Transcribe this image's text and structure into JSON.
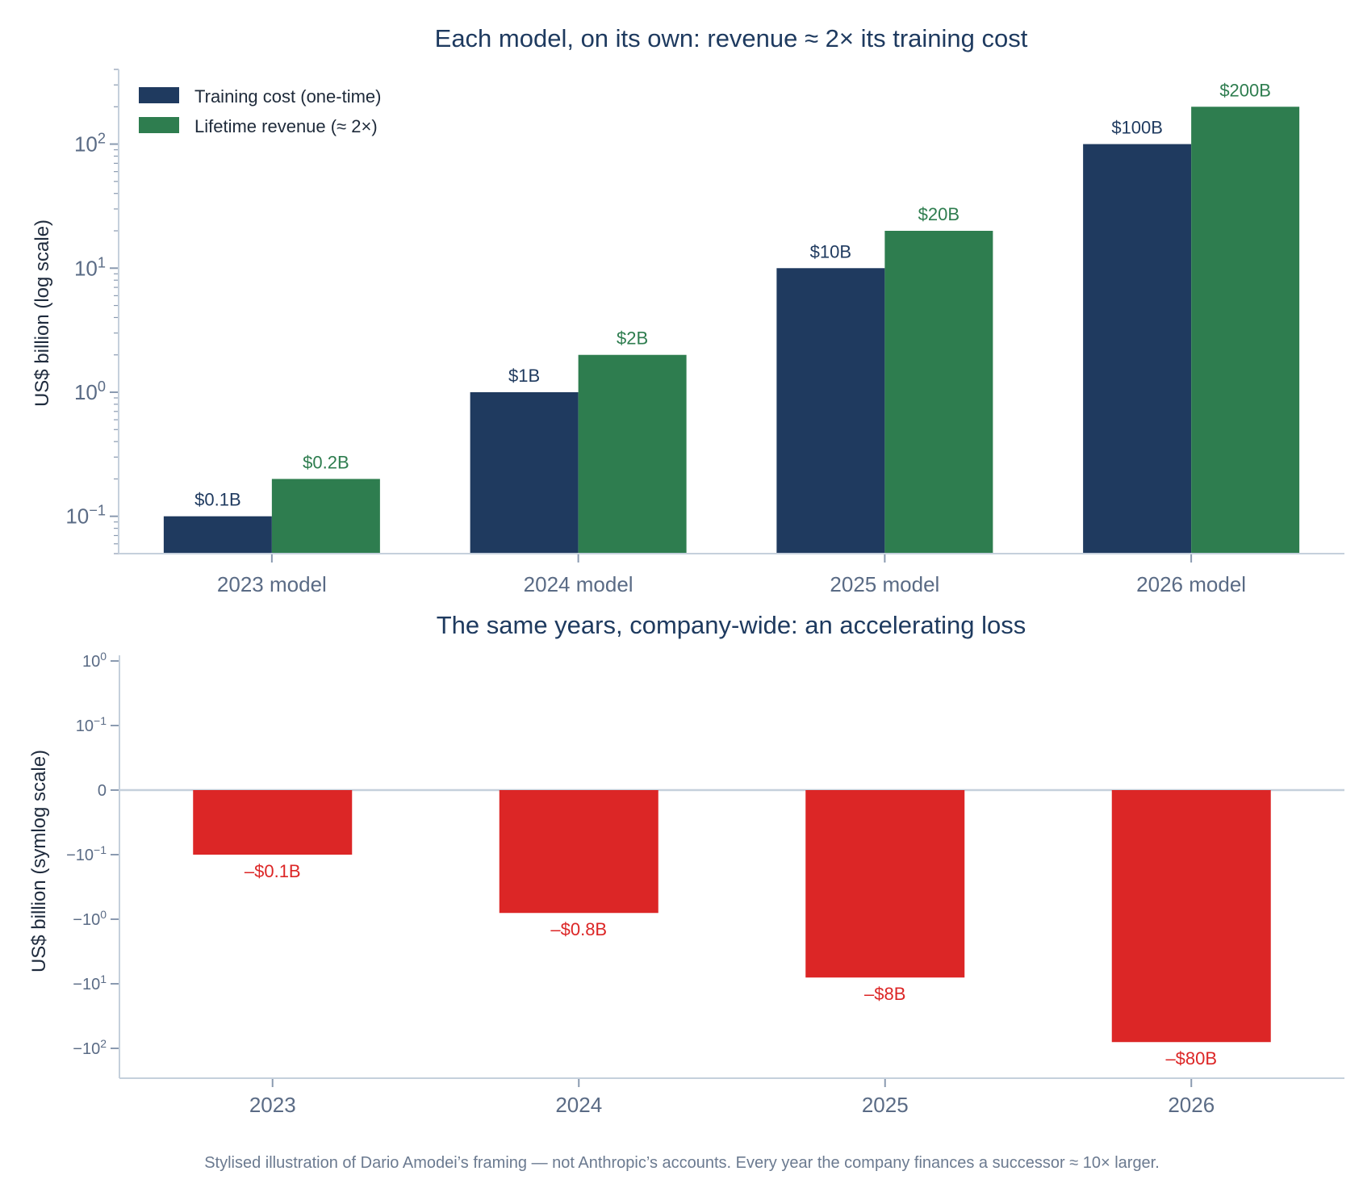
{
  "colors": {
    "cost": "#1f3a5f",
    "revenue": "#2e7d4f",
    "loss": "#dc2626",
    "title": "#1e3a5f"
  },
  "chart_data": [
    {
      "type": "bar",
      "title": "Each model, on its own:  revenue ≈ 2× its training cost",
      "xlabel": "",
      "ylabel": "US$ billion  (log scale)",
      "yscale": "log",
      "ylim": [
        0.05,
        400
      ],
      "yticks": [
        0.1,
        1,
        10,
        100
      ],
      "ytick_labels": [
        {
          "base": "10",
          "exp": "−1"
        },
        {
          "base": "10",
          "exp": "0"
        },
        {
          "base": "10",
          "exp": "1"
        },
        {
          "base": "10",
          "exp": "2"
        }
      ],
      "categories": [
        "2023 model",
        "2024 model",
        "2025 model",
        "2026 model"
      ],
      "legend_position": "top-left",
      "grid": false,
      "series": [
        {
          "name": "Training cost (one-time)",
          "color": "#1f3a5f",
          "values": [
            0.1,
            1,
            10,
            100
          ],
          "labels": [
            "$0.1B",
            "$1B",
            "$10B",
            "$100B"
          ]
        },
        {
          "name": "Lifetime revenue (≈ 2×)",
          "color": "#2e7d4f",
          "values": [
            0.2,
            2,
            20,
            200
          ],
          "labels": [
            "$0.2B",
            "$2B",
            "$20B",
            "$200B"
          ]
        }
      ]
    },
    {
      "type": "bar",
      "title": "The same years, company-wide:  an accelerating loss",
      "xlabel": "",
      "ylabel": "US$ billion  (symlog scale)",
      "yscale": "symlog",
      "ylim": [
        -200,
        1
      ],
      "yticks": [
        1,
        0.1,
        0,
        -0.1,
        -1,
        -10,
        -100
      ],
      "ytick_labels": [
        {
          "base": "10",
          "exp": "0"
        },
        {
          "base": "10",
          "exp": "−1"
        },
        {
          "base": "0",
          "exp": ""
        },
        {
          "base": "−10",
          "exp": "−1"
        },
        {
          "base": "−10",
          "exp": "0"
        },
        {
          "base": "−10",
          "exp": "1"
        },
        {
          "base": "−10",
          "exp": "2"
        }
      ],
      "categories": [
        "2023",
        "2024",
        "2025",
        "2026"
      ],
      "grid": false,
      "series": [
        {
          "color": "#dc2626",
          "values": [
            -0.1,
            -0.8,
            -8,
            -80
          ],
          "labels": [
            "–$0.1B",
            "–$0.8B",
            "–$8B",
            "–$80B"
          ]
        }
      ]
    }
  ],
  "caption": "Stylised illustration of Dario Amodei’s framing — not Anthropic’s accounts. Every year the company finances a successor ≈ 10× larger."
}
